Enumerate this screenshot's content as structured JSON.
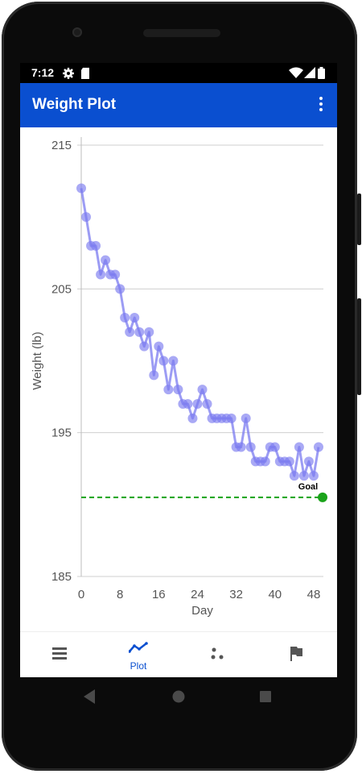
{
  "status": {
    "time": "7:12"
  },
  "app": {
    "title": "Weight Plot"
  },
  "nav": {
    "items": [
      {
        "name": "list",
        "label": ""
      },
      {
        "name": "plot",
        "label": "Plot"
      },
      {
        "name": "scatter",
        "label": ""
      },
      {
        "name": "goal",
        "label": ""
      }
    ]
  },
  "colors": {
    "accent": "#0a4fd0",
    "series": "#7b7bf0",
    "goal": "#1aa31a"
  },
  "chart_data": {
    "type": "line",
    "xlabel": "Day",
    "ylabel": "Weight (lb)",
    "xticks": [
      0,
      8,
      16,
      24,
      32,
      40,
      48
    ],
    "yticks": [
      185,
      195,
      205,
      215
    ],
    "xlim": [
      0,
      50
    ],
    "ylim": [
      185,
      215
    ],
    "grid": "horizontal",
    "series": [
      {
        "x": [
          0,
          1,
          2,
          3,
          4,
          5,
          6,
          7,
          8,
          9,
          10,
          11,
          12,
          13,
          14,
          15,
          16,
          17,
          18,
          19,
          20,
          21,
          22,
          23,
          24,
          25,
          26,
          27,
          28,
          29,
          30,
          31,
          32,
          33,
          34,
          35,
          36,
          37,
          38,
          39,
          40,
          41,
          42,
          43,
          44,
          45,
          46,
          47,
          48,
          49
        ],
        "y": [
          212,
          210,
          208,
          208,
          206,
          207,
          206,
          206,
          205,
          203,
          202,
          203,
          202,
          201,
          202,
          199,
          201,
          200,
          198,
          200,
          198,
          197,
          197,
          196,
          197,
          198,
          197,
          196,
          196,
          196,
          196,
          196,
          194,
          194,
          196,
          194,
          193,
          193,
          193,
          194,
          194,
          193,
          193,
          193,
          192,
          194,
          192,
          193,
          192,
          194
        ]
      }
    ],
    "goal": {
      "value": 190.5,
      "label": "Goal",
      "x_end": 50
    }
  }
}
